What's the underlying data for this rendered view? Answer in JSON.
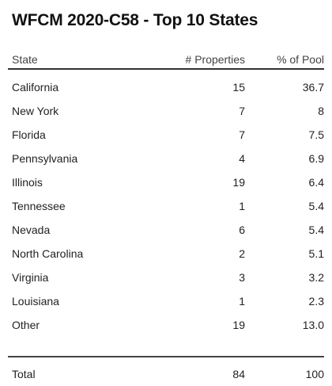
{
  "title": "WFCM 2020-C58 - Top 10 States",
  "columns": {
    "state": "State",
    "properties": "# Properties",
    "pool": "% of Pool"
  },
  "rows": [
    {
      "state": "California",
      "properties": "15",
      "pool": "36.7"
    },
    {
      "state": "New York",
      "properties": "7",
      "pool": "8"
    },
    {
      "state": "Florida",
      "properties": "7",
      "pool": "7.5"
    },
    {
      "state": "Pennsylvania",
      "properties": "4",
      "pool": "6.9"
    },
    {
      "state": "Illinois",
      "properties": "19",
      "pool": "6.4"
    },
    {
      "state": "Tennessee",
      "properties": "1",
      "pool": "5.4"
    },
    {
      "state": "Nevada",
      "properties": "6",
      "pool": "5.4"
    },
    {
      "state": "North Carolina",
      "properties": "2",
      "pool": "5.1"
    },
    {
      "state": "Virginia",
      "properties": "3",
      "pool": "3.2"
    },
    {
      "state": "Louisiana",
      "properties": "1",
      "pool": "2.3"
    },
    {
      "state": "Other",
      "properties": "19",
      "pool": "13.0"
    }
  ],
  "total": {
    "state": "Total",
    "properties": "84",
    "pool": "100"
  }
}
